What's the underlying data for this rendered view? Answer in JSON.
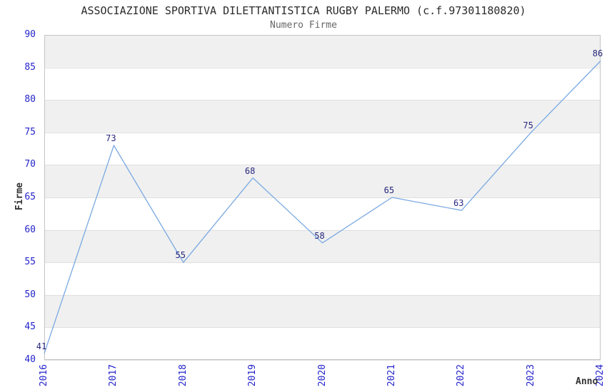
{
  "chart_data": {
    "type": "line",
    "title": "ASSOCIAZIONE SPORTIVA DILETTANTISTICA RUGBY PALERMO (c.f.97301180820)",
    "subtitle": "Numero Firme",
    "xlabel": "Anno",
    "ylabel": "Firme",
    "categories": [
      "2016",
      "2017",
      "2018",
      "2019",
      "2020",
      "2021",
      "2022",
      "2023",
      "2024"
    ],
    "values": [
      41,
      73,
      55,
      68,
      58,
      65,
      63,
      75,
      86
    ],
    "ylim": [
      40,
      90
    ],
    "ytick_step": 5,
    "grid": "horizontal",
    "legend": "none",
    "alternating_bands": true,
    "point_labels_visible": true,
    "colors": {
      "line": "#7aa9e2",
      "tick_label": "#2424cc",
      "point_label": "#26267d",
      "band": "#f0f0f0",
      "gridline": "#e0e0e0",
      "plot_border": "#c4c4c4",
      "title": "#2b2b2b",
      "subtitle": "#666666",
      "axis_title": "#333333"
    }
  }
}
